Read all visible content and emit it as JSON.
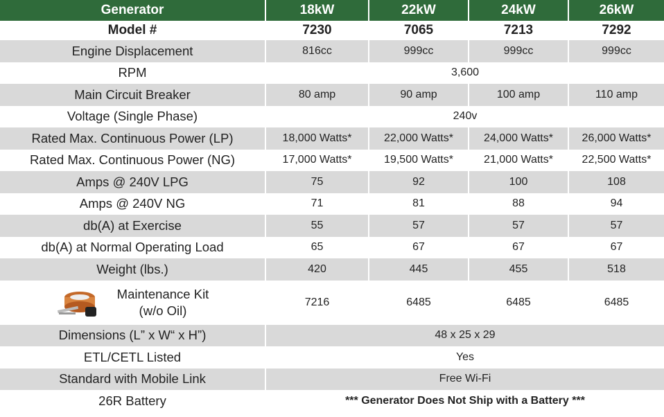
{
  "table": {
    "header": [
      "Generator",
      "18kW",
      "22kW",
      "24kW",
      "26kW"
    ],
    "rows": [
      [
        "Model #",
        "7230",
        "7065",
        "7213",
        "7292"
      ],
      [
        "Engine Displacement",
        "816cc",
        "999cc",
        "999cc",
        "999cc"
      ],
      [
        "RPM",
        "3,600"
      ],
      [
        "Main Circuit Breaker",
        "80 amp",
        "90 amp",
        "100 amp",
        "110 amp"
      ],
      [
        "Voltage (Single Phase)",
        "240v"
      ],
      [
        "Rated Max. Continuous Power (LP)",
        "18,000 Watts*",
        "22,000 Watts*",
        "24,000 Watts*",
        "26,000 Watts*"
      ],
      [
        "Rated Max. Continuous Power (NG)",
        "17,000 Watts*",
        "19,500 Watts*",
        "21,000 Watts*",
        "22,500 Watts*"
      ],
      [
        "Amps @ 240V LPG",
        "75",
        "92",
        "100",
        "108"
      ],
      [
        "Amps @ 240V NG",
        "71",
        "81",
        "88",
        "94"
      ],
      [
        "db(A) at Exercise",
        "55",
        "57",
        "57",
        "57"
      ],
      [
        "db(A) at Normal Operating Load",
        "65",
        "67",
        "67",
        "67"
      ],
      [
        "Weight (lbs.)",
        "420",
        "445",
        "455",
        "518"
      ],
      [
        "Maintenance Kit\n(w/o Oil)",
        "7216",
        "6485",
        "6485",
        "6485"
      ],
      [
        "Dimensions (L” x W“ x H”)",
        "48 x 25 x 29"
      ],
      [
        "ETL/CETL Listed",
        "Yes"
      ],
      [
        "Standard with Mobile Link",
        "Free Wi-Fi"
      ],
      [
        "26R Battery",
        "*** Generator Does Not Ship with a Battery ***"
      ]
    ]
  }
}
